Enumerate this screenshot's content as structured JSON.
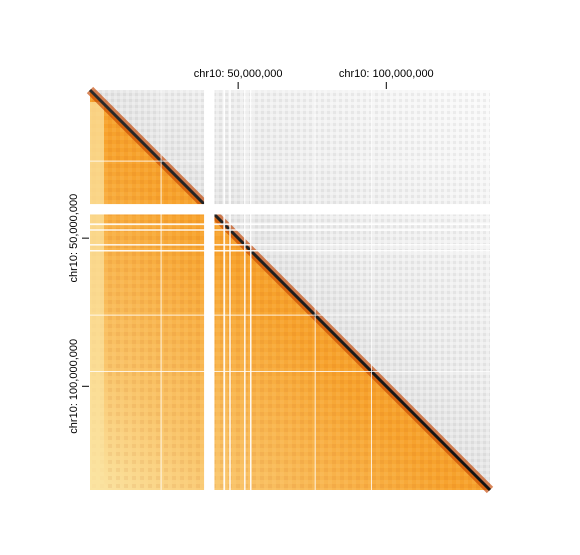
{
  "chart_data": {
    "type": "heatmap",
    "title": "",
    "chromosome": "chr10",
    "axis_range_bp": [
      0,
      135000000
    ],
    "ticks": [
      {
        "position_bp": 50000000,
        "label": "chr10: 50,000,000"
      },
      {
        "position_bp": 100000000,
        "label": "chr10: 100,000,000"
      }
    ],
    "gaps_bp": [
      [
        38500000,
        42000000
      ]
    ],
    "thin_gaps_bp": [
      [
        45000000,
        45600000
      ],
      [
        47000000,
        47400000
      ],
      [
        52000000,
        52500000
      ],
      [
        54000000,
        54400000
      ]
    ],
    "grid_lines_bp": [
      24000000,
      76000000,
      95000000
    ],
    "lower_triangle": {
      "colormap": "orange",
      "colors": [
        "#fbe6a6",
        "#f7a32e",
        "#e55a05",
        "#b03a00"
      ]
    },
    "upper_triangle": {
      "colormap": "grey",
      "colors": [
        "#ffffff",
        "#dcdcdc",
        "#8a8a8a",
        "#2a2a2a"
      ]
    },
    "diagonal": "dark (highest contact frequency)"
  }
}
